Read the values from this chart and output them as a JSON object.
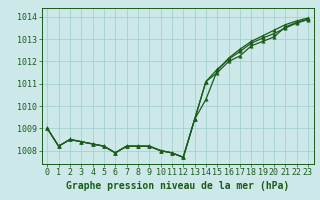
{
  "xlabel": "Graphe pression niveau de la mer (hPa)",
  "hours": [
    0,
    1,
    2,
    3,
    4,
    5,
    6,
    7,
    8,
    9,
    10,
    11,
    12,
    13,
    14,
    15,
    16,
    17,
    18,
    19,
    20,
    21,
    22,
    23
  ],
  "line1": [
    1009.0,
    1008.2,
    1008.5,
    1008.4,
    1008.3,
    1008.2,
    1007.9,
    1008.2,
    1008.2,
    1008.2,
    1008.0,
    1007.9,
    1007.7,
    1009.4,
    1011.1,
    1011.5,
    1012.0,
    1012.25,
    1012.7,
    1012.9,
    1013.1,
    1013.55,
    1013.75,
    1013.9
  ],
  "line2": [
    1009.0,
    1008.2,
    1008.5,
    1008.4,
    1008.3,
    1008.2,
    1007.9,
    1008.2,
    1008.2,
    1008.2,
    1008.0,
    1007.9,
    1007.7,
    1009.4,
    1010.3,
    1011.6,
    1012.15,
    1012.55,
    1012.9,
    1013.15,
    1013.4,
    1013.65,
    1013.82,
    1013.95
  ],
  "line3": [
    1009.0,
    1008.2,
    1008.5,
    1008.4,
    1008.3,
    1008.2,
    1007.9,
    1008.2,
    1008.2,
    1008.2,
    1008.0,
    1007.9,
    1007.7,
    1009.4,
    1011.1,
    1011.65,
    1012.1,
    1012.45,
    1012.82,
    1013.05,
    1013.25,
    1013.5,
    1013.72,
    1013.88
  ],
  "line_color": "#1a5c1a",
  "marker": "^",
  "bg_color": "#cce8e8",
  "grid_color": "#9ecece",
  "ylim": [
    1007.4,
    1014.4
  ],
  "yticks": [
    1008,
    1009,
    1010,
    1011,
    1012,
    1013,
    1014
  ],
  "xlim": [
    -0.5,
    23.5
  ],
  "xlabel_fontsize": 7,
  "tick_fontsize": 6,
  "linewidth": 0.9,
  "markersize": 2.5
}
